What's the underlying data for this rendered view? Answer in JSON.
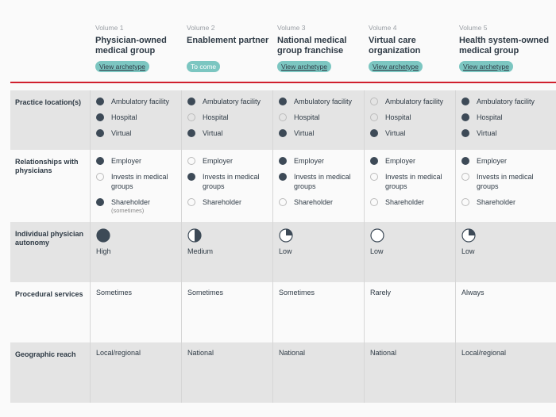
{
  "columns": [
    {
      "volume": "Volume 1",
      "title": "Physician-owned medical group",
      "button": "View archetype"
    },
    {
      "volume": "Volume 2",
      "title": "Enablement partner",
      "button": "To come"
    },
    {
      "volume": "Volume 3",
      "title": "National medical group franchise",
      "button": "View archetype"
    },
    {
      "volume": "Volume 4",
      "title": "Virtual care organization",
      "button": "View archetype"
    },
    {
      "volume": "Volume 5",
      "title": "Health system-owned medical group",
      "button": "View archetype"
    }
  ],
  "colors": {
    "accent_rule": "#d0202e",
    "button": "#7cc6c1",
    "bullet": "#3d4a57"
  },
  "rows": {
    "practice": {
      "label": "Practice location(s)",
      "items": [
        "Ambulatory facility",
        "Hospital",
        "Virtual"
      ],
      "values": [
        [
          true,
          true,
          true
        ],
        [
          true,
          false,
          true
        ],
        [
          true,
          false,
          true
        ],
        [
          false,
          false,
          true
        ],
        [
          true,
          true,
          true
        ]
      ]
    },
    "relationships": {
      "label": "Relationships with physicians",
      "items": [
        "Employer",
        "Invests in medical groups",
        "Shareholder"
      ],
      "note": "(sometimes)",
      "values": [
        [
          true,
          false,
          true
        ],
        [
          false,
          true,
          false
        ],
        [
          true,
          true,
          false
        ],
        [
          true,
          false,
          false
        ],
        [
          true,
          false,
          false
        ]
      ]
    },
    "autonomy": {
      "label": "Individual physician autonomy",
      "values": [
        {
          "level": 1,
          "text": "High"
        },
        {
          "level": 0.5,
          "text": "Medium"
        },
        {
          "level": 0.25,
          "text": "Low"
        },
        {
          "level": 0,
          "text": "Low"
        },
        {
          "level": 0.25,
          "text": "Low"
        }
      ]
    },
    "procedural": {
      "label": "Procedural services",
      "values": [
        "Sometimes",
        "Sometimes",
        "Sometimes",
        "Rarely",
        "Always"
      ]
    },
    "reach": {
      "label": "Geographic reach",
      "values": [
        "Local/regional",
        "National",
        "National",
        "National",
        "Local/regional"
      ]
    }
  }
}
